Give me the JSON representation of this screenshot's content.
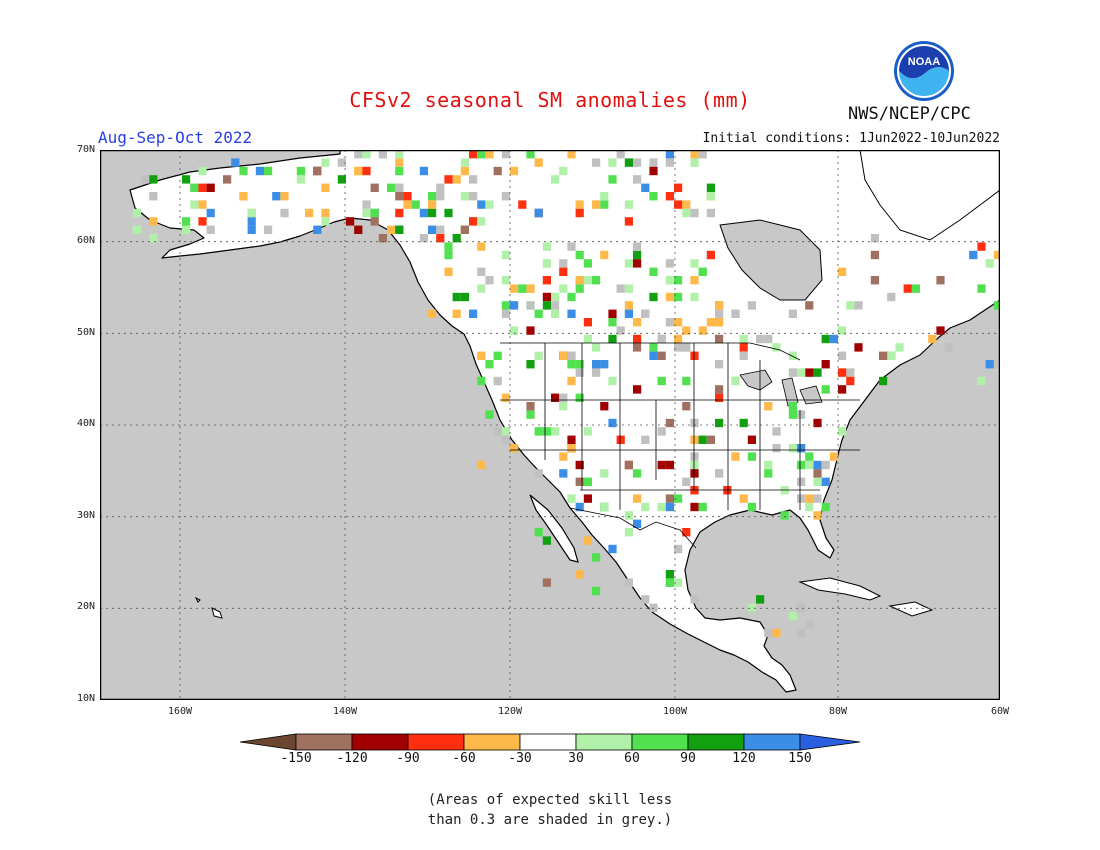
{
  "title": "CFSv2 seasonal SM anomalies (mm)",
  "period": "Aug-Sep-Oct 2022",
  "initial_conditions": "Initial conditions: 1Jun2022-10Jun2022",
  "agency": "NWS/NCEP/CPC",
  "logo_text": "NOAA",
  "colors": {
    "title": "#e01010",
    "period": "#2a40e6",
    "ocean": "#c8c8c8",
    "land": "#ffffff",
    "grey_mask": "#c0c0c0",
    "scale": [
      "#6b4630",
      "#a07060",
      "#a00000",
      "#ff3010",
      "#ffb84a",
      "#ffffff",
      "#b0f0a8",
      "#50e050",
      "#10a010",
      "#3a8ee6",
      "#2a60e0"
    ]
  },
  "axes": {
    "lat_labels": [
      "70N",
      "60N",
      "50N",
      "40N",
      "30N",
      "20N",
      "10N"
    ],
    "lon_labels": [
      "160W",
      "140W",
      "120W",
      "100W",
      "80W",
      "60W"
    ]
  },
  "colorbar": {
    "labels": [
      "-150",
      "-120",
      "-90",
      "-60",
      "-30",
      "30",
      "60",
      "90",
      "120",
      "150"
    ]
  },
  "note": {
    "line1": "(Areas of expected skill less",
    "line2": "than 0.3 are shaded in grey.)"
  }
}
